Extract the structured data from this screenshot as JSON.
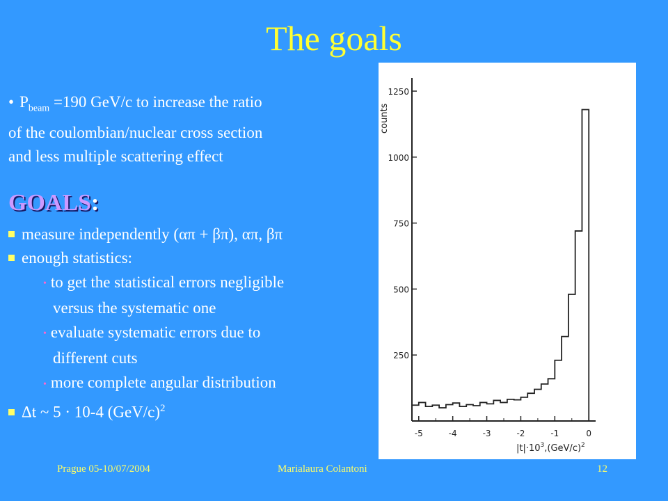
{
  "title": "The goals",
  "intro": {
    "bullet": "•",
    "p_label": "P",
    "p_sub": "beam",
    "line1_rest": " =190 GeV/c to increase the ratio",
    "line2": "of the coulombian/nuclear cross section",
    "line3": "and less multiple scattering effect"
  },
  "goals_heading": "GOALS",
  "goals_colon": ":",
  "goals": {
    "item1": "measure independently (απ + βπ), απ,  βπ",
    "item2": "enough statistics:",
    "sub1_line1": "to get the statistical errors negligible",
    "sub1_line2": "versus the systematic one",
    "sub2_line1": "evaluate systematic errors due to",
    "sub2_line2": "different cuts",
    "sub3": "more complete angular distribution",
    "item3_main": "Δt ~ 5 · 10-4 (GeV/c)",
    "item3_sup": "2"
  },
  "footer": {
    "left": "Prague 05-10/07/2004",
    "center": "Marialaura Colantoni",
    "page": "12"
  },
  "colors": {
    "background": "#3399ff",
    "title": "#ffff33",
    "heading": "#cc99ff",
    "footer": "#ffff66"
  },
  "chart_data": {
    "type": "histogram",
    "ylabel": "counts",
    "xlabel": "|t|·10",
    "xlabel_sup": "3",
    "xlabel_rest": ",(GeV/c)",
    "xlabel_sup2": "2",
    "xlim": [
      -5.2,
      0.2
    ],
    "ylim": [
      0,
      1300
    ],
    "yticks": [
      250,
      500,
      750,
      1000,
      1250
    ],
    "ytick_labels": [
      "250",
      "500",
      "750",
      "1000",
      "1250"
    ],
    "xticks": [
      -5,
      -4,
      -3,
      -2,
      -1,
      0
    ],
    "xtick_labels": [
      "-5",
      "-4",
      "-3",
      "-2",
      "-1",
      "0"
    ],
    "bins": [
      {
        "x0": -5.2,
        "x1": -5.0,
        "y": 60
      },
      {
        "x0": -5.0,
        "x1": -4.8,
        "y": 70
      },
      {
        "x0": -4.8,
        "x1": -4.6,
        "y": 55
      },
      {
        "x0": -4.6,
        "x1": -4.4,
        "y": 60
      },
      {
        "x0": -4.4,
        "x1": -4.2,
        "y": 50
      },
      {
        "x0": -4.2,
        "x1": -4.0,
        "y": 62
      },
      {
        "x0": -4.0,
        "x1": -3.8,
        "y": 68
      },
      {
        "x0": -3.8,
        "x1": -3.6,
        "y": 55
      },
      {
        "x0": -3.6,
        "x1": -3.4,
        "y": 62
      },
      {
        "x0": -3.4,
        "x1": -3.2,
        "y": 58
      },
      {
        "x0": -3.2,
        "x1": -3.0,
        "y": 70
      },
      {
        "x0": -3.0,
        "x1": -2.8,
        "y": 65
      },
      {
        "x0": -2.8,
        "x1": -2.6,
        "y": 78
      },
      {
        "x0": -2.6,
        "x1": -2.4,
        "y": 70
      },
      {
        "x0": -2.4,
        "x1": -2.2,
        "y": 82
      },
      {
        "x0": -2.2,
        "x1": -2.0,
        "y": 80
      },
      {
        "x0": -2.0,
        "x1": -1.8,
        "y": 90
      },
      {
        "x0": -1.8,
        "x1": -1.6,
        "y": 105
      },
      {
        "x0": -1.6,
        "x1": -1.4,
        "y": 120
      },
      {
        "x0": -1.4,
        "x1": -1.2,
        "y": 140
      },
      {
        "x0": -1.2,
        "x1": -1.0,
        "y": 160
      },
      {
        "x0": -1.0,
        "x1": -0.8,
        "y": 230
      },
      {
        "x0": -0.8,
        "x1": -0.6,
        "y": 320
      },
      {
        "x0": -0.6,
        "x1": -0.4,
        "y": 480
      },
      {
        "x0": -0.4,
        "x1": -0.2,
        "y": 720
      },
      {
        "x0": -0.2,
        "x1": 0.0,
        "y": 1180
      }
    ]
  }
}
